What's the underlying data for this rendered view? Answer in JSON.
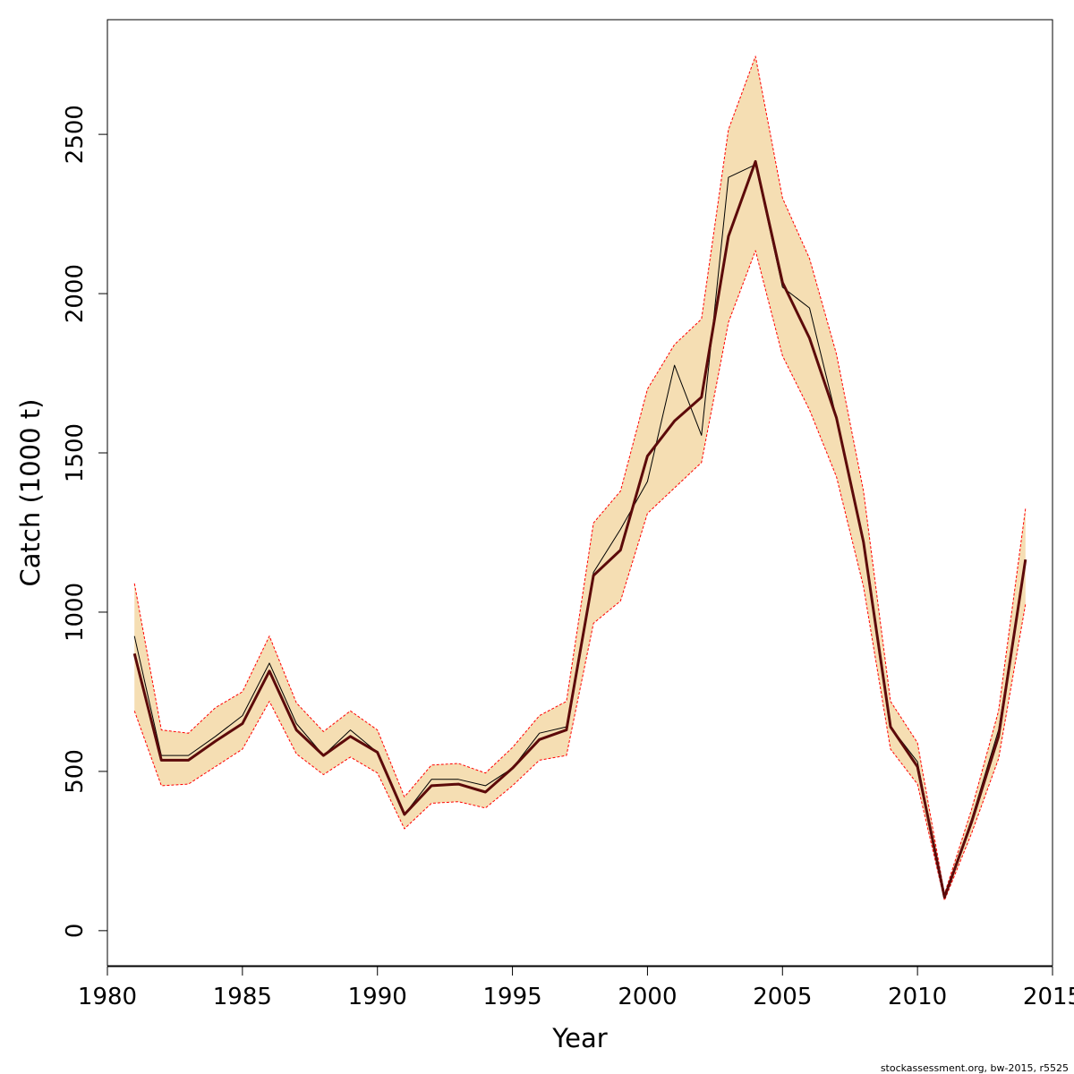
{
  "chart_data": {
    "type": "line",
    "xlabel": "Year",
    "ylabel": "Catch (1000 t)",
    "footer": "stockassessment.org, bw-2015, r5525",
    "xlim": [
      1980,
      2015
    ],
    "ylim": [
      -110,
      2860
    ],
    "x_ticks": [
      1980,
      1985,
      1990,
      1995,
      2000,
      2005,
      2010,
      2015
    ],
    "y_ticks": [
      0,
      500,
      1000,
      1500,
      2000,
      2500
    ],
    "colors": {
      "band": "#f5deb3",
      "band_edge": "#ff0000",
      "estimate": "#5c0a0a",
      "observed": "#000000"
    },
    "x": [
      1981,
      1982,
      1983,
      1984,
      1985,
      1986,
      1987,
      1988,
      1989,
      1990,
      1991,
      1992,
      1993,
      1994,
      1995,
      1996,
      1997,
      1998,
      1999,
      2000,
      2001,
      2002,
      2003,
      2004,
      2005,
      2006,
      2007,
      2008,
      2009,
      2010,
      2011,
      2012,
      2013,
      2014
    ],
    "series": [
      {
        "role": "estimate",
        "values": [
          870,
          535,
          535,
          595,
          650,
          815,
          630,
          550,
          610,
          560,
          365,
          455,
          460,
          435,
          510,
          600,
          630,
          1115,
          1195,
          1490,
          1600,
          1675,
          2180,
          2415,
          2035,
          1860,
          1610,
          1220,
          640,
          515,
          105,
          340,
          610,
          1165
        ]
      },
      {
        "role": "observed",
        "values": [
          925,
          550,
          550,
          610,
          675,
          840,
          650,
          550,
          630,
          560,
          365,
          475,
          475,
          455,
          510,
          620,
          640,
          1125,
          1260,
          1410,
          1775,
          1555,
          2365,
          2405,
          2020,
          1955,
          1610,
          1225,
          640,
          530,
          105,
          350,
          630,
          1165
        ]
      },
      {
        "role": "lower",
        "values": [
          690,
          455,
          460,
          515,
          570,
          720,
          555,
          490,
          545,
          495,
          320,
          400,
          405,
          385,
          455,
          535,
          550,
          965,
          1035,
          1310,
          1390,
          1470,
          1910,
          2135,
          1805,
          1635,
          1425,
          1080,
          570,
          460,
          95,
          305,
          540,
          1025
        ]
      },
      {
        "role": "upper",
        "values": [
          1090,
          630,
          620,
          700,
          750,
          925,
          715,
          625,
          690,
          630,
          420,
          520,
          525,
          495,
          575,
          675,
          720,
          1280,
          1380,
          1700,
          1840,
          1920,
          2515,
          2745,
          2300,
          2110,
          1810,
          1380,
          720,
          590,
          115,
          380,
          690,
          1325
        ]
      }
    ]
  }
}
